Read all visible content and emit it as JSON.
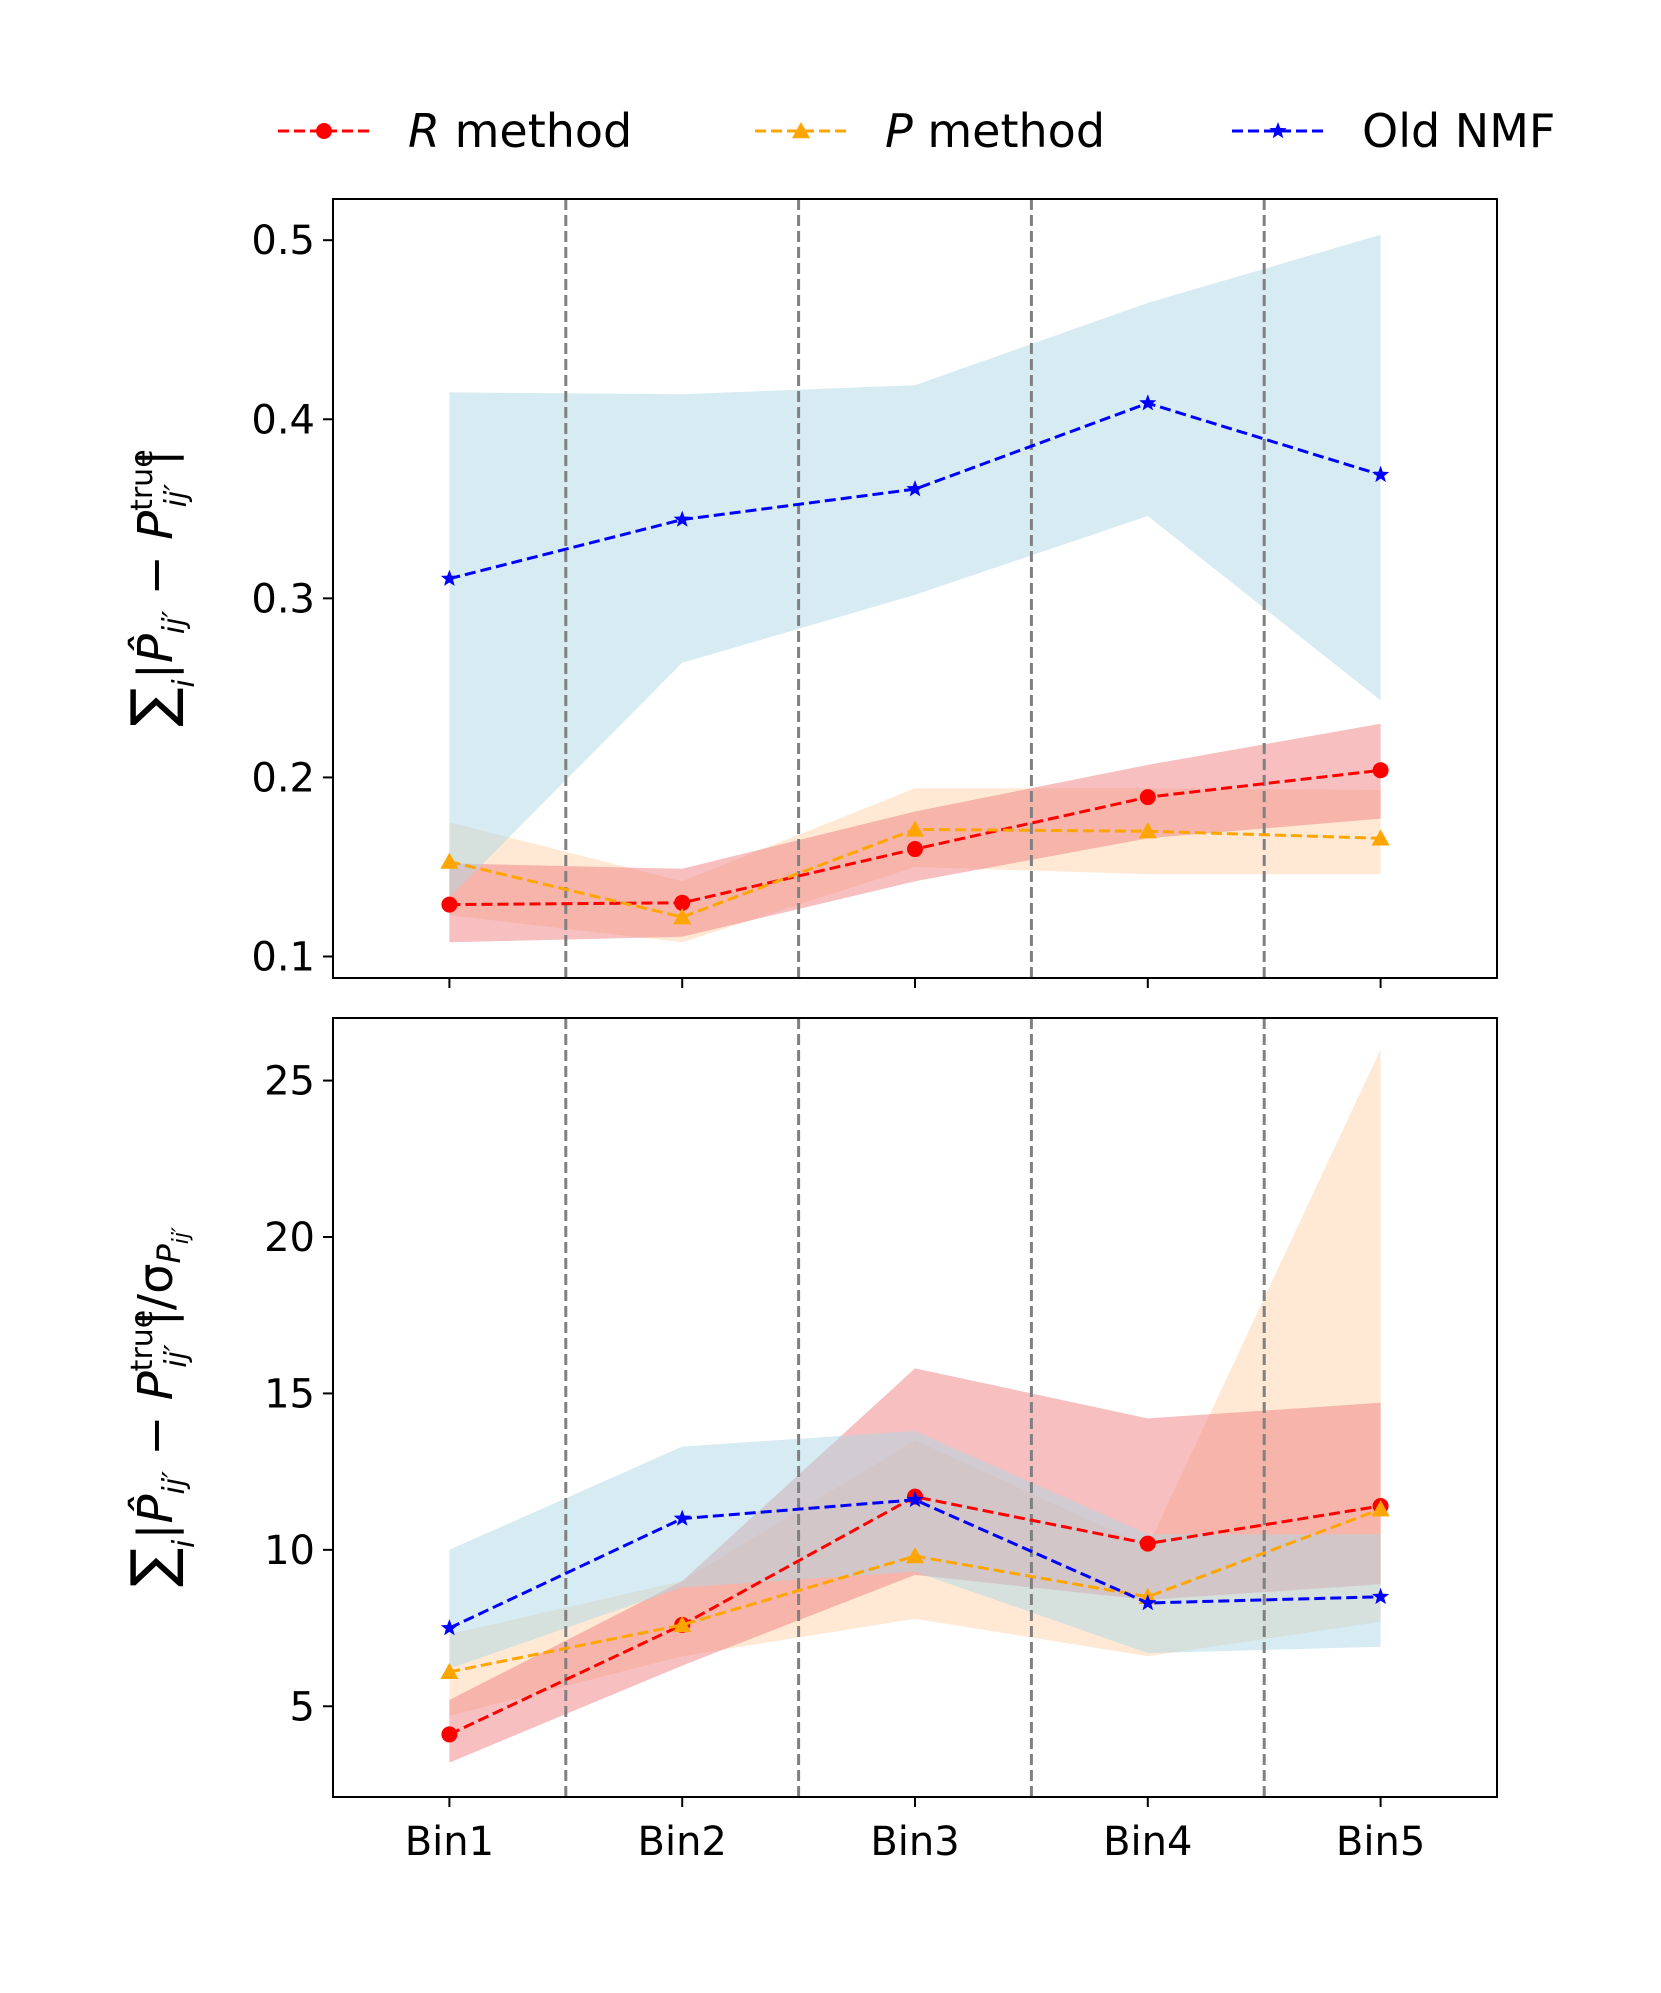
{
  "legend": {
    "items": [
      {
        "key": "r",
        "label_italic": "R",
        "label_rest": " method"
      },
      {
        "key": "p",
        "label_italic": "P",
        "label_rest": " method"
      },
      {
        "key": "nmf",
        "label_italic": "",
        "label_rest": "Old NMF"
      }
    ]
  },
  "colors": {
    "r": "#ff0000",
    "p": "#ffa500",
    "nmf": "#0000ff",
    "r_band": "#f08080",
    "p_band": "#ffdab9",
    "nmf_band": "#add8e6",
    "divider": "#808080"
  },
  "chart_data": [
    {
      "type": "line",
      "panel": "top",
      "categories": [
        "Bin1",
        "Bin2",
        "Bin3",
        "Bin4",
        "Bin5"
      ],
      "ylabel_parts": [
        "∑",
        "i",
        "|",
        "P̂",
        "ij′",
        " − ",
        "P",
        "true",
        "ij′",
        "|"
      ],
      "yticks": [
        0.1,
        0.2,
        0.3,
        0.4,
        0.5
      ],
      "ytick_labels": [
        "0.1",
        "0.2",
        "0.3",
        "0.4",
        "0.5"
      ],
      "ylim": [
        0.088,
        0.523
      ],
      "grid": false,
      "legend_position": "top",
      "series": [
        {
          "key": "nmf",
          "name": "Old NMF",
          "marker": "star",
          "values": [
            0.311,
            0.344,
            0.361,
            0.409,
            0.369
          ],
          "band_lower": [
            0.133,
            0.264,
            0.302,
            0.346,
            0.243
          ],
          "band_upper": [
            0.415,
            0.414,
            0.419,
            0.465,
            0.503
          ]
        },
        {
          "key": "p",
          "name": "P method",
          "marker": "triangle",
          "values": [
            0.153,
            0.122,
            0.171,
            0.17,
            0.166
          ],
          "band_lower": [
            0.123,
            0.108,
            0.15,
            0.146,
            0.146
          ],
          "band_upper": [
            0.175,
            0.142,
            0.194,
            0.194,
            0.193
          ]
        },
        {
          "key": "r",
          "name": "R method",
          "marker": "circle",
          "values": [
            0.129,
            0.13,
            0.16,
            0.189,
            0.204
          ],
          "band_lower": [
            0.108,
            0.111,
            0.142,
            0.166,
            0.177
          ],
          "band_upper": [
            0.152,
            0.149,
            0.181,
            0.207,
            0.23
          ]
        }
      ]
    },
    {
      "type": "line",
      "panel": "bottom",
      "categories": [
        "Bin1",
        "Bin2",
        "Bin3",
        "Bin4",
        "Bin5"
      ],
      "ylabel_parts": [
        "∑",
        "i",
        "|",
        "P̂",
        "ij′",
        " − ",
        "P",
        "true",
        "ij′",
        "|/σ",
        "P",
        "ij′"
      ],
      "yticks": [
        5,
        10,
        15,
        20,
        25
      ],
      "ytick_labels": [
        "5",
        "10",
        "15",
        "20",
        "25"
      ],
      "ylim": [
        2.1,
        27.0
      ],
      "grid": false,
      "series": [
        {
          "key": "nmf",
          "name": "Old NMF",
          "marker": "star",
          "values": [
            7.5,
            11.0,
            11.6,
            8.3,
            8.5
          ],
          "band_lower": [
            6.2,
            8.8,
            9.3,
            6.7,
            6.9
          ],
          "band_upper": [
            10.0,
            13.3,
            13.8,
            10.5,
            10.5
          ]
        },
        {
          "key": "p",
          "name": "P method",
          "marker": "triangle",
          "values": [
            6.1,
            7.6,
            9.8,
            8.5,
            11.3
          ],
          "band_lower": [
            4.7,
            6.6,
            7.8,
            6.6,
            7.7
          ],
          "band_upper": [
            7.3,
            9.0,
            13.5,
            10.1,
            26.0
          ]
        },
        {
          "key": "r",
          "name": "R method",
          "marker": "circle",
          "values": [
            4.1,
            7.6,
            11.7,
            10.2,
            11.4
          ],
          "band_lower": [
            3.2,
            6.3,
            9.2,
            8.4,
            8.9
          ],
          "band_upper": [
            5.2,
            9.0,
            15.8,
            14.2,
            14.7
          ]
        }
      ]
    }
  ]
}
